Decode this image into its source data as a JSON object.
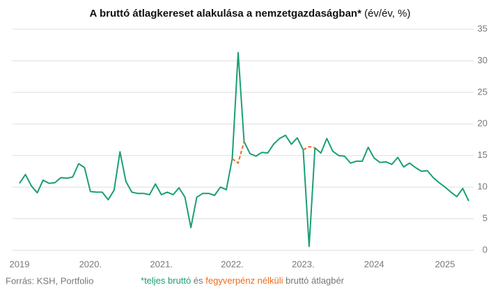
{
  "chart_data": {
    "type": "line",
    "title": "A bruttó átlagkereset alakulása a nemzetgazdaságban*",
    "subtitle": "(év/év, %)",
    "categories": [
      "2019",
      null,
      null,
      null,
      null,
      null,
      null,
      null,
      null,
      null,
      null,
      null,
      "2020.",
      null,
      null,
      null,
      null,
      null,
      null,
      null,
      null,
      null,
      null,
      null,
      "2021.",
      null,
      null,
      null,
      null,
      null,
      null,
      null,
      null,
      null,
      null,
      null,
      "2022.",
      null,
      null,
      null,
      null,
      null,
      null,
      null,
      null,
      null,
      null,
      null,
      "2023.",
      null,
      null,
      null,
      null,
      null,
      null,
      null,
      null,
      null,
      null,
      null,
      "2024",
      null,
      null,
      null,
      null,
      null,
      null,
      null,
      null,
      null,
      null,
      null,
      "2025",
      null,
      null,
      null,
      null
    ],
    "series": [
      {
        "name": "teljes bruttó",
        "color": "#1a9e77",
        "values": [
          10.6,
          12.0,
          10.2,
          9.1,
          11.1,
          10.6,
          10.7,
          11.5,
          11.4,
          11.6,
          13.7,
          13.1,
          9.3,
          9.2,
          9.2,
          8.0,
          9.5,
          15.6,
          10.9,
          9.2,
          9.0,
          9.0,
          8.8,
          10.5,
          8.8,
          9.2,
          8.8,
          9.9,
          8.4,
          3.6,
          8.4,
          9.0,
          9.0,
          8.7,
          10.0,
          9.6,
          14.5,
          31.3,
          17.2,
          15.3,
          14.9,
          15.5,
          15.4,
          16.8,
          17.7,
          18.2,
          16.8,
          17.8,
          15.9,
          0.6,
          16.2,
          15.4,
          17.7,
          15.7,
          15.0,
          14.9,
          13.8,
          14.1,
          14.1,
          16.3,
          14.6,
          13.9,
          14.0,
          13.6,
          14.7,
          13.2,
          13.8,
          13.1,
          12.5,
          12.6,
          11.5,
          10.7,
          10.0,
          9.2,
          8.5,
          9.8,
          7.8
        ]
      },
      {
        "name": "fegyverpénz nélküli",
        "color": "#f06a1d",
        "dashed": true,
        "values": [
          null,
          null,
          null,
          null,
          null,
          null,
          null,
          null,
          null,
          null,
          null,
          null,
          null,
          null,
          null,
          null,
          null,
          null,
          null,
          null,
          null,
          null,
          null,
          null,
          null,
          null,
          null,
          null,
          null,
          null,
          null,
          null,
          null,
          null,
          null,
          null,
          14.5,
          13.8,
          17.2,
          null,
          null,
          null,
          null,
          null,
          null,
          null,
          null,
          null,
          15.9,
          16.4,
          16.2,
          null,
          null,
          null,
          null,
          null,
          null,
          null,
          null,
          null,
          null,
          null,
          null,
          null,
          null,
          null,
          null,
          null,
          null,
          null,
          null,
          null,
          null,
          null,
          null,
          null,
          null
        ]
      }
    ],
    "ylim": [
      0,
      35
    ],
    "yticks": [
      0,
      5,
      10,
      15,
      20,
      25,
      30,
      35
    ],
    "grid": true,
    "y_axis_side": "right",
    "source": "Forrás: KSH, Portfolio",
    "legend_prefix": "*",
    "legend_join": "és",
    "legend_suffix": "bruttó átlagbér"
  }
}
